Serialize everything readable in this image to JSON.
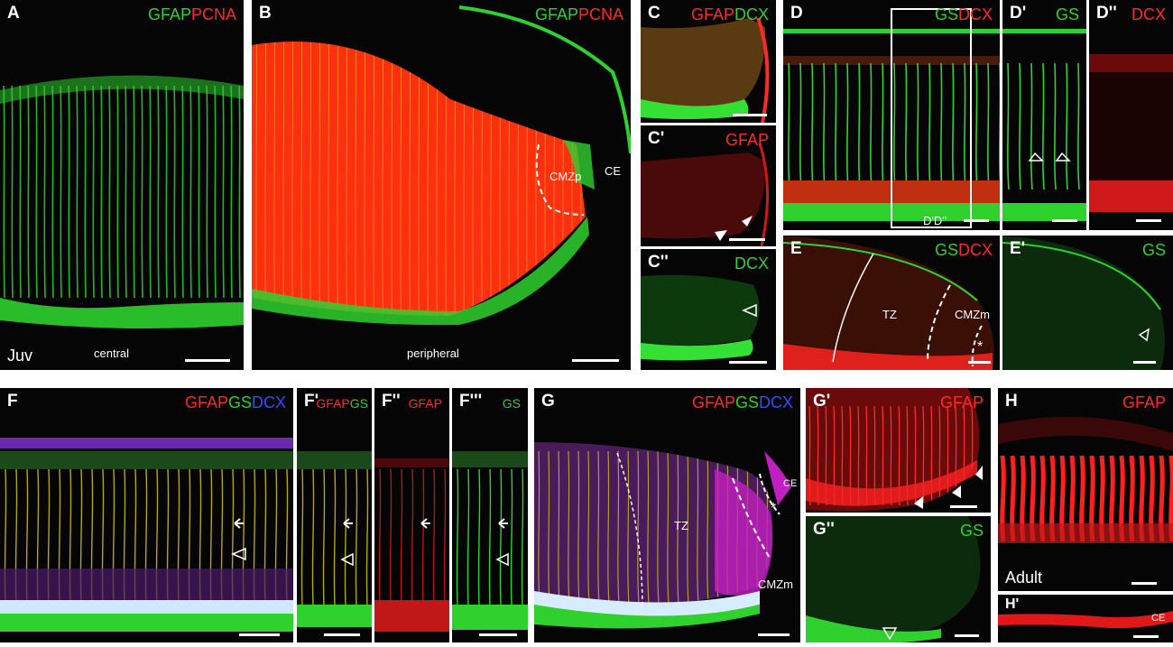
{
  "colors": {
    "gfap_green": "#2fd12f",
    "red": "#ff2a2a",
    "blue": "#3a4bff"
  },
  "panels": {
    "A": {
      "label": "A",
      "stain1": "GFAP",
      "stain2": "PCNA",
      "stage": "Juv",
      "region": "central"
    },
    "B": {
      "label": "B",
      "stain1": "GFAP",
      "stain2": "PCNA",
      "region": "peripheral",
      "zone": "CMZp",
      "ce": "CE"
    },
    "C": {
      "label": "C",
      "stain1": "GFAP",
      "stain2": "DCX"
    },
    "C1": {
      "label": "C'",
      "stain": "GFAP"
    },
    "C2": {
      "label": "C''",
      "stain": "DCX"
    },
    "D": {
      "label": "D",
      "stain1": "GS",
      "stain2": "DCX",
      "box_label": "D'D''"
    },
    "D1": {
      "label": "D'",
      "stain": "GS"
    },
    "D2": {
      "label": "D''",
      "stain": "DCX"
    },
    "E": {
      "label": "E",
      "stain1": "GS",
      "stain2": "DCX",
      "tz": "TZ",
      "zone": "CMZm",
      "asterisk": "*"
    },
    "E1": {
      "label": "E'",
      "stain": "GS"
    },
    "F": {
      "label": "F",
      "stain1": "GFAP",
      "stain2": "GS",
      "stain3": "DCX"
    },
    "F1": {
      "label": "F'",
      "stain1": "GFAP",
      "stain2": "GS"
    },
    "F2": {
      "label": "F''",
      "stain": "GFAP"
    },
    "F3": {
      "label": "F'''",
      "stain": "GS"
    },
    "G": {
      "label": "G",
      "stain1": "GFAP",
      "stain2": "GS",
      "stain3": "DCX",
      "tz": "TZ",
      "zone": "CMZm",
      "ce": "CE",
      "asterisk": "*"
    },
    "G1": {
      "label": "G'",
      "stain": "GFAP"
    },
    "G2": {
      "label": "G''",
      "stain": "GS"
    },
    "H": {
      "label": "H",
      "stain": "GFAP",
      "stage": "Adult"
    },
    "H1": {
      "label": "H'",
      "ce": "CE"
    }
  }
}
